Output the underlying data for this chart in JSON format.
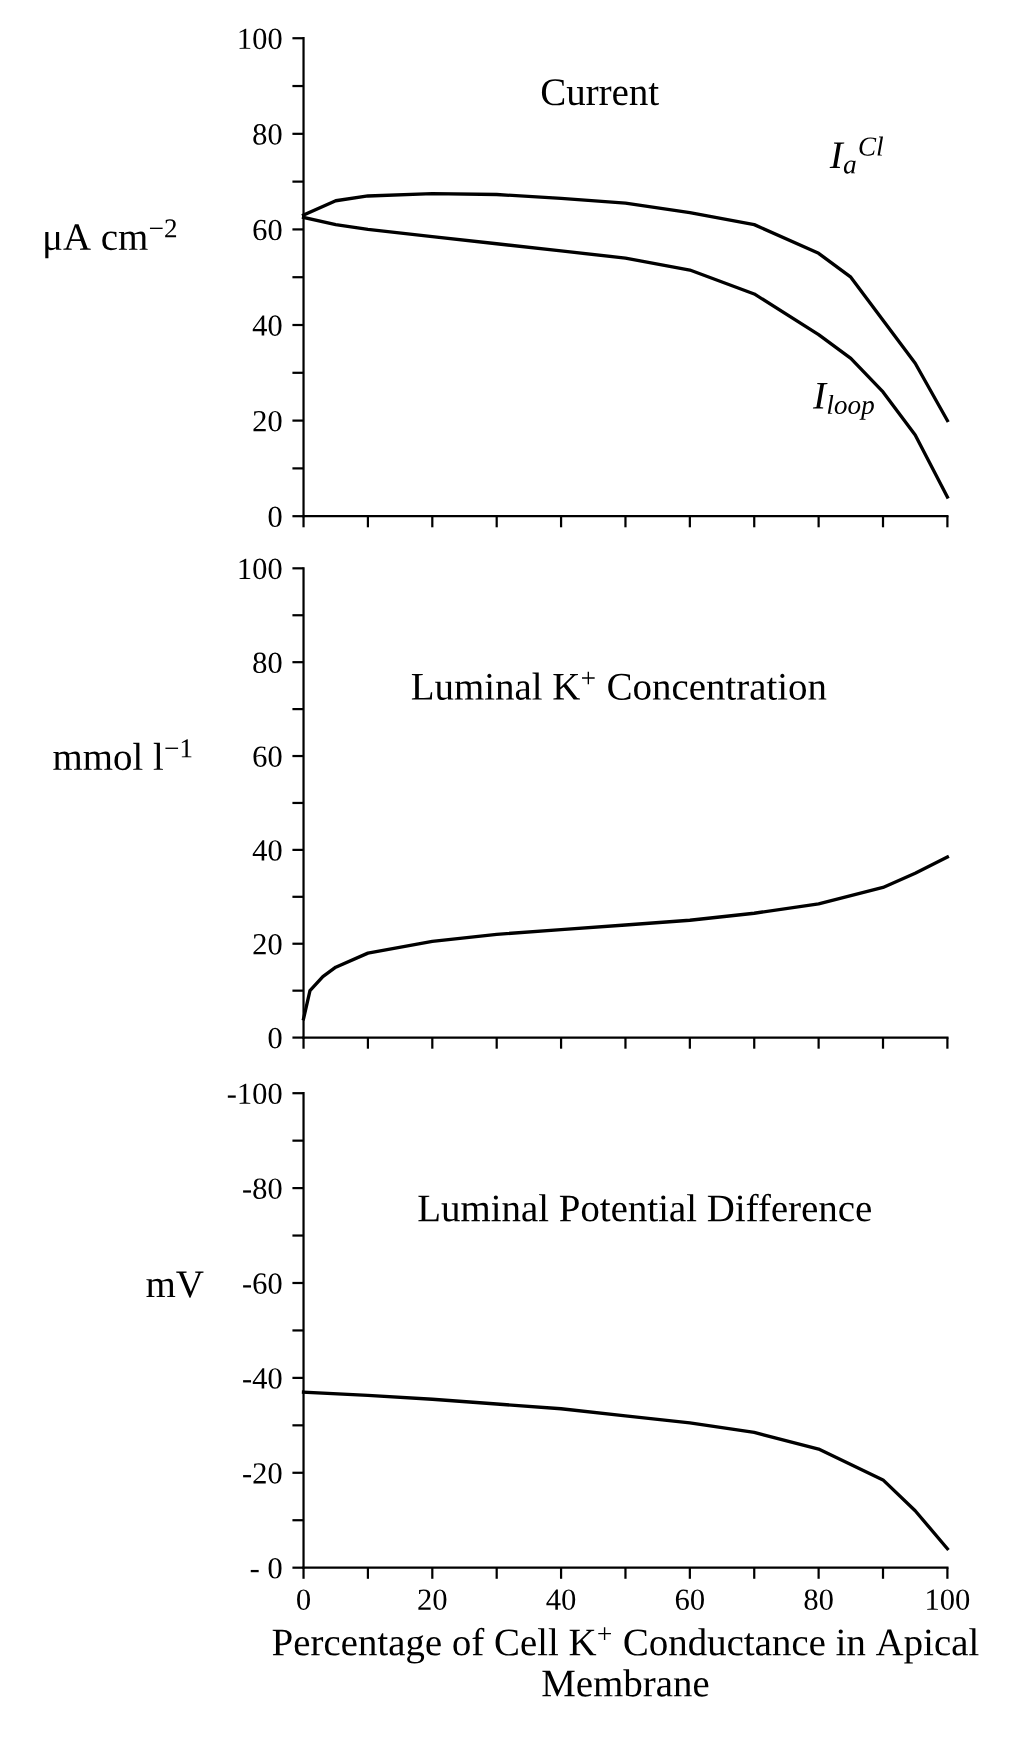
{
  "chart_data": [
    {
      "type": "line",
      "title": "Current",
      "ylabel": "μA cm$^{−2}$",
      "tick_labels": "y",
      "xlim": [
        0,
        100
      ],
      "ylim": [
        0,
        100
      ],
      "xticks": [
        0,
        {
          "value": 10,
          "label": null
        },
        20,
        {
          "value": 30,
          "label": null
        },
        40,
        {
          "value": 50,
          "label": null
        },
        60,
        {
          "value": 70,
          "label": null
        },
        80,
        {
          "value": 90,
          "label": null
        },
        100
      ],
      "yticks": [
        0,
        {
          "value": 10,
          "label": null
        },
        20,
        {
          "value": 30,
          "label": null
        },
        40,
        {
          "value": 50,
          "label": null
        },
        60,
        {
          "value": 70,
          "label": null
        },
        80,
        {
          "value": 90,
          "label": null
        },
        100
      ],
      "series": [
        {
          "name": "I$_{a}$$^{Cl}$",
          "color": "#000000",
          "x": [
            0,
            5,
            10,
            20,
            30,
            40,
            50,
            60,
            70,
            80,
            85,
            90,
            95,
            100
          ],
          "values": [
            63,
            66,
            67,
            67.5,
            67.3,
            66.5,
            65.5,
            63.5,
            61,
            55,
            50,
            41,
            32,
            20
          ]
        },
        {
          "name": "I$_{loop}$",
          "color": "#000000",
          "x": [
            0,
            5,
            10,
            20,
            30,
            40,
            50,
            60,
            70,
            80,
            85,
            90,
            95,
            100
          ],
          "values": [
            62.5,
            61,
            60,
            58.5,
            57,
            55.5,
            54,
            51.5,
            46.5,
            38,
            33,
            26,
            17,
            4
          ]
        }
      ]
    },
    {
      "type": "line",
      "title": "Luminal K$^{+}$ Concentration",
      "ylabel": "mmol l$^{−1}$",
      "tick_labels": "y",
      "xlim": [
        0,
        100
      ],
      "ylim": [
        0,
        100
      ],
      "xticks": [
        0,
        {
          "value": 10,
          "label": null
        },
        20,
        {
          "value": 30,
          "label": null
        },
        40,
        {
          "value": 50,
          "label": null
        },
        60,
        {
          "value": 70,
          "label": null
        },
        80,
        {
          "value": 90,
          "label": null
        },
        100
      ],
      "yticks": [
        0,
        {
          "value": 10,
          "label": null
        },
        20,
        {
          "value": 30,
          "label": null
        },
        40,
        {
          "value": 50,
          "label": null
        },
        60,
        {
          "value": 70,
          "label": null
        },
        80,
        {
          "value": 90,
          "label": null
        },
        100
      ],
      "series": [
        {
          "color": "#000000",
          "x": [
            0,
            1,
            3,
            5,
            10,
            20,
            30,
            40,
            50,
            60,
            70,
            80,
            90,
            95,
            100
          ],
          "values": [
            4,
            10,
            13,
            15,
            18,
            20.5,
            22,
            23,
            24,
            25,
            26.5,
            28.5,
            32,
            35,
            38.5
          ]
        }
      ]
    },
    {
      "type": "line",
      "title": "Luminal Potential Difference",
      "ylabel": "mV",
      "xlabel": "Percentage of Cell K$^{+}$ Conductance in Apical Membrane",
      "xlim": [
        0,
        100
      ],
      "ylim": [
        0,
        -100
      ],
      "xticks": [
        0,
        {
          "value": 10,
          "label": null
        },
        20,
        {
          "value": 30,
          "label": null
        },
        40,
        {
          "value": 50,
          "label": null
        },
        60,
        {
          "value": 70,
          "label": null
        },
        80,
        {
          "value": 90,
          "label": null
        },
        100
      ],
      "yticks": [
        {
          "value": 0,
          "label": "- 0"
        },
        {
          "value": -10,
          "label": null
        },
        -20,
        {
          "value": -30,
          "label": null
        },
        -40,
        {
          "value": -50,
          "label": null
        },
        -60,
        {
          "value": -70,
          "label": null
        },
        -80,
        {
          "value": -90,
          "label": null
        },
        -100
      ],
      "series": [
        {
          "color": "#000000",
          "x": [
            0,
            10,
            20,
            30,
            40,
            50,
            60,
            70,
            80,
            90,
            95,
            100
          ],
          "values": [
            -37,
            -36.3,
            -35.5,
            -34.5,
            -33.5,
            -32,
            -30.5,
            -28.5,
            -25,
            -18.5,
            -12,
            -4
          ]
        }
      ]
    }
  ]
}
